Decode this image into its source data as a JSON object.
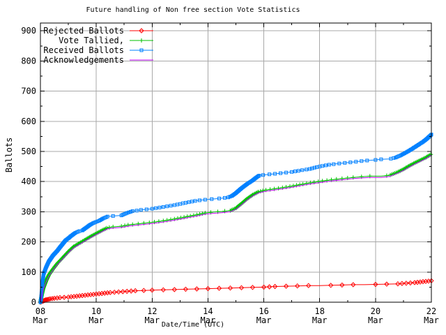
{
  "chart_data": {
    "type": "line",
    "title": "Future handling of Non free section Vote Statistics",
    "xlabel": "Date/Time (UTC)",
    "ylabel": "Ballots",
    "x_unit": "day of March, UTC",
    "xlim": [
      8,
      22
    ],
    "ylim": [
      0,
      926
    ],
    "y_major_ticks": [
      0,
      100,
      200,
      300,
      400,
      500,
      600,
      700,
      800,
      900
    ],
    "y_minor_ticks": [
      50,
      150,
      250,
      350,
      450,
      550,
      650,
      750,
      850
    ],
    "x_major_ticks": [
      8,
      10,
      12,
      14,
      16,
      18,
      20,
      22
    ],
    "x_tick_labels": [
      "08 Mar",
      "10 Mar",
      "12 Mar",
      "14 Mar",
      "16 Mar",
      "18 Mar",
      "20 Mar",
      "22 Mar"
    ],
    "x_minor_ticks": [
      9,
      11,
      13,
      15,
      17,
      19,
      21
    ],
    "grid": true,
    "legend_position": "top-left-inside",
    "colors": {
      "background": "#ffffff",
      "axis": "#000000",
      "grid": "#a8a8a8",
      "rejected": "#ff0000",
      "tallied": "#00c000",
      "received": "#0080ff",
      "acknowledgements": "#c000ff"
    },
    "series": [
      {
        "name": "Rejected Ballots",
        "color": "#ff0000",
        "marker": "diamond",
        "marker_value_step": 1,
        "x": [
          8.0,
          8.1,
          8.2,
          8.35,
          8.5,
          8.7,
          9.0,
          9.3,
          9.6,
          9.9,
          10.2,
          10.5,
          10.8,
          11.1,
          11.4,
          11.7,
          12.0,
          12.4,
          12.8,
          13.2,
          13.6,
          14.0,
          14.4,
          14.8,
          15.2,
          15.6,
          16.0,
          16.4,
          16.8,
          17.2,
          17.6,
          18.0,
          18.4,
          18.8,
          19.2,
          19.6,
          20.0,
          20.4,
          20.8,
          21.1,
          21.4,
          21.7,
          21.9,
          22.0
        ],
        "y": [
          0,
          4,
          8,
          11,
          13,
          15,
          17,
          20,
          23,
          26,
          29,
          32,
          34,
          36,
          38,
          39,
          40,
          41,
          42,
          43,
          44,
          45,
          46,
          47,
          48,
          49,
          50,
          52,
          53,
          54,
          55,
          55,
          56,
          57,
          58,
          58,
          59,
          60,
          61,
          63,
          65,
          68,
          70,
          71
        ]
      },
      {
        "name": "Vote Tallied,",
        "color": "#00c000",
        "marker": "plus",
        "marker_value_step": 2,
        "x": [
          8.0,
          8.05,
          8.1,
          8.2,
          8.3,
          8.45,
          8.6,
          8.8,
          9.0,
          9.2,
          9.4,
          9.6,
          9.8,
          10.0,
          10.2,
          10.4,
          10.6,
          10.9,
          11.2,
          11.6,
          12.0,
          12.4,
          12.8,
          13.2,
          13.6,
          13.9,
          14.2,
          14.5,
          14.8,
          15.0,
          15.2,
          15.4,
          15.6,
          15.8,
          16.0,
          16.3,
          16.6,
          17.0,
          17.4,
          17.8,
          18.1,
          18.5,
          18.9,
          19.2,
          19.5,
          19.8,
          20.2,
          20.5,
          20.8,
          21.0,
          21.2,
          21.4,
          21.6,
          21.8,
          22.0
        ],
        "y": [
          0,
          25,
          45,
          70,
          90,
          110,
          128,
          148,
          168,
          185,
          196,
          207,
          218,
          228,
          238,
          247,
          250,
          252,
          257,
          261,
          265,
          270,
          276,
          283,
          290,
          296,
          299,
          301,
          304,
          312,
          327,
          343,
          356,
          366,
          371,
          375,
          379,
          385,
          392,
          398,
          402,
          407,
          411,
          414,
          416,
          418,
          418,
          421,
          432,
          441,
          452,
          462,
          471,
          480,
          491
        ]
      },
      {
        "name": "Received Ballots",
        "color": "#0080ff",
        "marker": "square",
        "marker_value_step": 2,
        "x": [
          8.0,
          8.02,
          8.05,
          8.08,
          8.12,
          8.2,
          8.3,
          8.45,
          8.6,
          8.75,
          8.9,
          9.0,
          9.1,
          9.25,
          9.4,
          9.5,
          9.65,
          9.8,
          9.95,
          10.1,
          10.25,
          10.4,
          10.6,
          10.9,
          11.1,
          11.3,
          11.6,
          12.0,
          12.4,
          12.8,
          13.2,
          13.6,
          14.0,
          14.4,
          14.7,
          14.85,
          15.0,
          15.2,
          15.4,
          15.6,
          15.75,
          15.85,
          16.1,
          16.4,
          16.7,
          17.0,
          17.3,
          17.6,
          17.9,
          18.1,
          18.4,
          18.7,
          19.0,
          19.2,
          19.5,
          19.7,
          20.0,
          20.2,
          20.5,
          20.7,
          20.9,
          21.1,
          21.3,
          21.5,
          21.7,
          21.85,
          22.0
        ],
        "y": [
          0,
          10,
          40,
          70,
          95,
          115,
          135,
          155,
          170,
          188,
          205,
          212,
          220,
          230,
          236,
          238,
          248,
          258,
          265,
          270,
          278,
          284,
          286,
          288,
          296,
          302,
          306,
          310,
          316,
          322,
          330,
          337,
          341,
          344,
          347,
          352,
          362,
          378,
          392,
          404,
          415,
          421,
          423,
          426,
          429,
          432,
          437,
          441,
          448,
          452,
          457,
          460,
          463,
          465,
          468,
          470,
          472,
          474,
          475,
          479,
          487,
          497,
          508,
          520,
          532,
          543,
          556
        ]
      },
      {
        "name": "Acknowledgements",
        "color": "#c000ff",
        "marker": "none",
        "marker_value_step": 0,
        "x": [
          8.0,
          8.05,
          8.1,
          8.2,
          8.3,
          8.45,
          8.6,
          8.8,
          9.0,
          9.2,
          9.4,
          9.6,
          9.8,
          10.0,
          10.2,
          10.4,
          10.6,
          10.9,
          11.2,
          11.6,
          12.0,
          12.4,
          12.8,
          13.2,
          13.6,
          13.9,
          14.2,
          14.5,
          14.8,
          15.0,
          15.2,
          15.4,
          15.6,
          15.8,
          16.0,
          16.3,
          16.6,
          17.0,
          17.4,
          17.8,
          18.1,
          18.5,
          18.9,
          19.2,
          19.5,
          19.8,
          20.2,
          20.5,
          20.8,
          21.0,
          21.2,
          21.4,
          21.6,
          21.8,
          22.0
        ],
        "y": [
          0,
          21,
          41,
          66,
          86,
          106,
          124,
          144,
          164,
          181,
          192,
          203,
          214,
          224,
          234,
          243,
          246,
          248,
          253,
          257,
          261,
          266,
          272,
          279,
          286,
          292,
          295,
          297,
          300,
          308,
          323,
          339,
          352,
          362,
          367,
          371,
          375,
          381,
          388,
          394,
          398,
          403,
          407,
          410,
          412,
          414,
          414,
          417,
          428,
          437,
          448,
          458,
          467,
          476,
          488
        ]
      }
    ]
  }
}
